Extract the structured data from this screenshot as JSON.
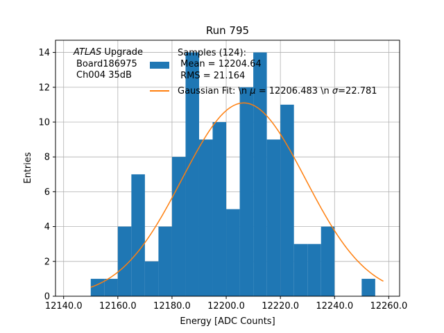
{
  "chart_data": {
    "type": "bar",
    "title": "Run 795",
    "xlabel": "Energy [ADC Counts]",
    "ylabel": "Entries",
    "xlim": [
      12137,
      12264
    ],
    "ylim": [
      0,
      14.7
    ],
    "grid": true,
    "bin_width": 5,
    "bin_edges": [
      12150,
      12155,
      12160,
      12165,
      12170,
      12175,
      12180,
      12185,
      12190,
      12195,
      12200,
      12205,
      12210,
      12215,
      12220,
      12225,
      12230,
      12235,
      12240,
      12245,
      12250,
      12255,
      12260
    ],
    "values": [
      1,
      1,
      4,
      7,
      2,
      4,
      8,
      14,
      9,
      10,
      5,
      12,
      14,
      9,
      11,
      3,
      3,
      4,
      0,
      0,
      1,
      0
    ],
    "x_ticks": [
      12140.0,
      12160.0,
      12180.0,
      12200.0,
      12220.0,
      12240.0,
      12260.0
    ],
    "x_tick_labels": [
      "12140.0",
      "12160.0",
      "12180.0",
      "12200.0",
      "12220.0",
      "12240.0",
      "12260.0"
    ],
    "y_ticks": [
      0,
      2,
      4,
      6,
      8,
      10,
      12,
      14
    ],
    "y_tick_labels": [
      "0",
      "2",
      "4",
      "6",
      "8",
      "10",
      "12",
      "14"
    ],
    "fit": {
      "amplitude": 11.1,
      "mu": 12206.483,
      "sigma": 22.781,
      "x_range": [
        12150,
        12258
      ]
    },
    "annotation": {
      "line1_italic": "ATLAS",
      "line1_rest": " Upgrade",
      "line2": "Board186975",
      "line3": "Ch004 35dB"
    },
    "legend": {
      "placement": "top-right",
      "hist_label_lines": [
        "Samples (124):",
        " Mean = 12204.64",
        " RMS = 21.164"
      ],
      "fit_label_prefix": "Gaussian Fit: \\n ",
      "fit_label_mu": "μ",
      "fit_label_mid": " = 12206.483 \\n ",
      "fit_label_sigma": "σ",
      "fit_label_end": "=22.781"
    },
    "colors": {
      "hist": "#1f77b4",
      "fit": "#ff7f0e",
      "grid": "#b0b0b0"
    }
  }
}
